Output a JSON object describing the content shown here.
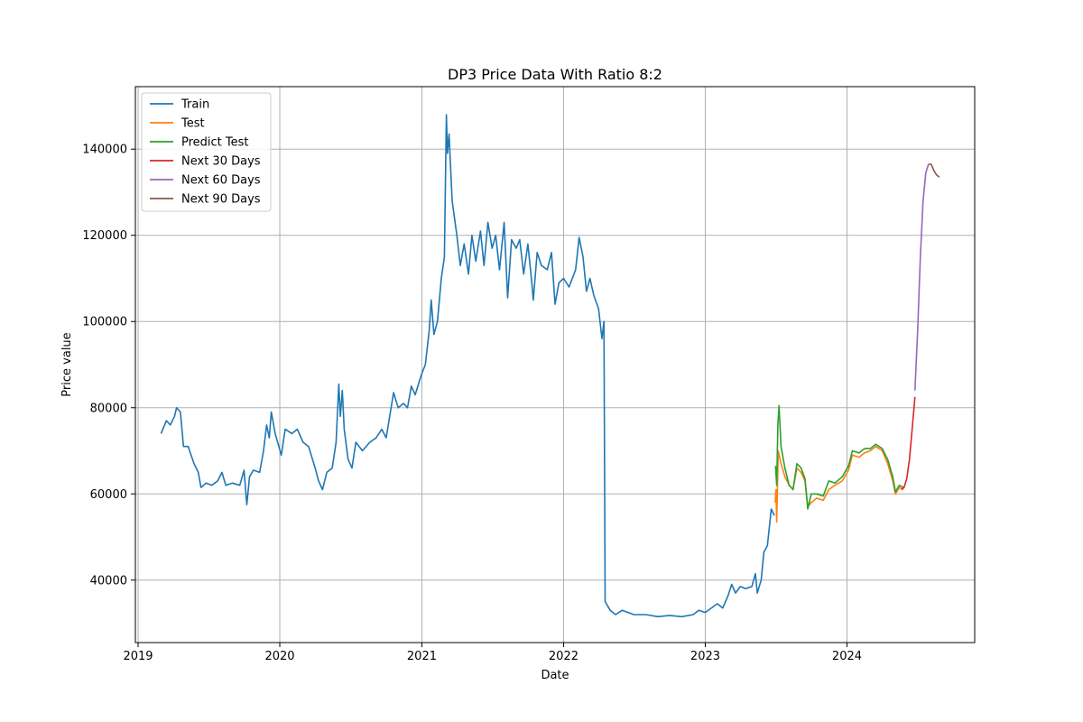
{
  "chart_data": {
    "type": "line",
    "title": "DP3 Price Data With Ratio 8:2",
    "xlabel": "Date",
    "ylabel": "Price value",
    "xlim": [
      "2018-12-25",
      "2024-11-25"
    ],
    "ylim": [
      25500,
      154500
    ],
    "x_ticks": [
      "2019",
      "2020",
      "2021",
      "2022",
      "2023",
      "2024"
    ],
    "y_ticks": [
      40000,
      60000,
      80000,
      100000,
      120000,
      140000
    ],
    "grid": true,
    "legend_position": "top-left",
    "series": [
      {
        "name": "Train",
        "color": "#1f77b4",
        "points": [
          [
            "2019-03-01",
            74000
          ],
          [
            "2019-03-15",
            77000
          ],
          [
            "2019-03-25",
            76000
          ],
          [
            "2019-04-05",
            78000
          ],
          [
            "2019-04-10",
            80000
          ],
          [
            "2019-04-20",
            79000
          ],
          [
            "2019-04-28",
            71000
          ],
          [
            "2019-05-10",
            71000
          ],
          [
            "2019-05-25",
            67000
          ],
          [
            "2019-06-05",
            65000
          ],
          [
            "2019-06-12",
            61500
          ],
          [
            "2019-06-25",
            62500
          ],
          [
            "2019-07-10",
            62000
          ],
          [
            "2019-07-25",
            63000
          ],
          [
            "2019-08-05",
            65000
          ],
          [
            "2019-08-15",
            62000
          ],
          [
            "2019-09-01",
            62500
          ],
          [
            "2019-09-20",
            62000
          ],
          [
            "2019-10-01",
            65500
          ],
          [
            "2019-10-08",
            57500
          ],
          [
            "2019-10-15",
            64000
          ],
          [
            "2019-10-25",
            65500
          ],
          [
            "2019-11-10",
            65000
          ],
          [
            "2019-11-20",
            70000
          ],
          [
            "2019-11-28",
            76000
          ],
          [
            "2019-12-05",
            73000
          ],
          [
            "2019-12-10",
            79000
          ],
          [
            "2019-12-20",
            74000
          ],
          [
            "2020-01-05",
            69000
          ],
          [
            "2020-01-15",
            75000
          ],
          [
            "2020-02-01",
            74000
          ],
          [
            "2020-02-15",
            75000
          ],
          [
            "2020-03-01",
            72000
          ],
          [
            "2020-03-15",
            71000
          ],
          [
            "2020-04-01",
            66000
          ],
          [
            "2020-04-10",
            63000
          ],
          [
            "2020-04-20",
            61000
          ],
          [
            "2020-05-01",
            65000
          ],
          [
            "2020-05-15",
            66000
          ],
          [
            "2020-05-25",
            72000
          ],
          [
            "2020-06-01",
            85500
          ],
          [
            "2020-06-05",
            78000
          ],
          [
            "2020-06-10",
            84000
          ],
          [
            "2020-06-15",
            75000
          ],
          [
            "2020-06-25",
            68000
          ],
          [
            "2020-07-05",
            66000
          ],
          [
            "2020-07-15",
            72000
          ],
          [
            "2020-08-01",
            70000
          ],
          [
            "2020-08-20",
            72000
          ],
          [
            "2020-09-05",
            73000
          ],
          [
            "2020-09-20",
            75000
          ],
          [
            "2020-10-01",
            73000
          ],
          [
            "2020-10-10",
            78000
          ],
          [
            "2020-10-20",
            83500
          ],
          [
            "2020-11-01",
            80000
          ],
          [
            "2020-11-15",
            81000
          ],
          [
            "2020-11-25",
            80000
          ],
          [
            "2020-12-05",
            85000
          ],
          [
            "2020-12-15",
            83000
          ],
          [
            "2020-12-25",
            86000
          ],
          [
            "2021-01-01",
            88000
          ],
          [
            "2021-01-10",
            90000
          ],
          [
            "2021-01-20",
            98000
          ],
          [
            "2021-01-25",
            105000
          ],
          [
            "2021-02-01",
            97000
          ],
          [
            "2021-02-10",
            100000
          ],
          [
            "2021-02-20",
            110000
          ],
          [
            "2021-02-28",
            115000
          ],
          [
            "2021-03-05",
            148000
          ],
          [
            "2021-03-08",
            139000
          ],
          [
            "2021-03-12",
            143500
          ],
          [
            "2021-03-20",
            128000
          ],
          [
            "2021-04-01",
            120000
          ],
          [
            "2021-04-10",
            113000
          ],
          [
            "2021-04-20",
            118000
          ],
          [
            "2021-05-01",
            111000
          ],
          [
            "2021-05-10",
            120000
          ],
          [
            "2021-05-20",
            114000
          ],
          [
            "2021-06-01",
            121000
          ],
          [
            "2021-06-10",
            113000
          ],
          [
            "2021-06-20",
            123000
          ],
          [
            "2021-07-01",
            117000
          ],
          [
            "2021-07-10",
            120000
          ],
          [
            "2021-07-20",
            112000
          ],
          [
            "2021-08-01",
            123000
          ],
          [
            "2021-08-10",
            105500
          ],
          [
            "2021-08-20",
            119000
          ],
          [
            "2021-09-01",
            117000
          ],
          [
            "2021-09-10",
            119000
          ],
          [
            "2021-09-20",
            111000
          ],
          [
            "2021-10-01",
            118000
          ],
          [
            "2021-10-10",
            110000
          ],
          [
            "2021-10-15",
            105000
          ],
          [
            "2021-10-25",
            116000
          ],
          [
            "2021-11-05",
            113000
          ],
          [
            "2021-11-20",
            112000
          ],
          [
            "2021-12-01",
            116000
          ],
          [
            "2021-12-10",
            104000
          ],
          [
            "2021-12-20",
            109000
          ],
          [
            "2022-01-01",
            110000
          ],
          [
            "2022-01-15",
            108000
          ],
          [
            "2022-02-01",
            112000
          ],
          [
            "2022-02-10",
            119500
          ],
          [
            "2022-02-20",
            115000
          ],
          [
            "2022-03-01",
            107000
          ],
          [
            "2022-03-10",
            110000
          ],
          [
            "2022-03-20",
            106000
          ],
          [
            "2022-04-01",
            103000
          ],
          [
            "2022-04-10",
            96000
          ],
          [
            "2022-04-15",
            100000
          ],
          [
            "2022-04-18",
            35000
          ],
          [
            "2022-05-01",
            33000
          ],
          [
            "2022-05-15",
            32000
          ],
          [
            "2022-06-01",
            33000
          ],
          [
            "2022-07-01",
            32000
          ],
          [
            "2022-08-01",
            32000
          ],
          [
            "2022-09-01",
            31500
          ],
          [
            "2022-10-01",
            31800
          ],
          [
            "2022-11-01",
            31500
          ],
          [
            "2022-12-01",
            32000
          ],
          [
            "2022-12-15",
            33000
          ],
          [
            "2023-01-01",
            32500
          ],
          [
            "2023-02-01",
            34500
          ],
          [
            "2023-02-15",
            33500
          ],
          [
            "2023-03-01",
            36500
          ],
          [
            "2023-03-10",
            39000
          ],
          [
            "2023-03-20",
            37000
          ],
          [
            "2023-04-01",
            38500
          ],
          [
            "2023-04-15",
            38000
          ],
          [
            "2023-05-01",
            38500
          ],
          [
            "2023-05-10",
            41500
          ],
          [
            "2023-05-15",
            37000
          ],
          [
            "2023-05-25",
            40000
          ],
          [
            "2023-06-01",
            46500
          ],
          [
            "2023-06-10",
            48000
          ],
          [
            "2023-06-20",
            56500
          ],
          [
            "2023-06-28",
            55000
          ]
        ]
      },
      {
        "name": "Test",
        "color": "#ff7f0e",
        "points": [
          [
            "2023-06-30",
            58000
          ],
          [
            "2023-07-02",
            61000
          ],
          [
            "2023-07-04",
            53500
          ],
          [
            "2023-07-08",
            70000
          ],
          [
            "2023-07-15",
            67000
          ],
          [
            "2023-07-25",
            64000
          ],
          [
            "2023-08-05",
            62000
          ],
          [
            "2023-08-15",
            61000
          ],
          [
            "2023-08-25",
            66000
          ],
          [
            "2023-09-05",
            65000
          ],
          [
            "2023-09-15",
            63000
          ],
          [
            "2023-09-22",
            57000
          ],
          [
            "2023-10-01",
            58000
          ],
          [
            "2023-10-15",
            59000
          ],
          [
            "2023-11-01",
            58500
          ],
          [
            "2023-11-15",
            61000
          ],
          [
            "2023-12-01",
            62000
          ],
          [
            "2023-12-20",
            63000
          ],
          [
            "2024-01-05",
            65500
          ],
          [
            "2024-01-15",
            69000
          ],
          [
            "2024-02-01",
            68500
          ],
          [
            "2024-02-15",
            69500
          ],
          [
            "2024-03-01",
            70000
          ],
          [
            "2024-03-15",
            71000
          ],
          [
            "2024-04-01",
            70000
          ],
          [
            "2024-04-15",
            67000
          ],
          [
            "2024-04-28",
            63000
          ],
          [
            "2024-05-05",
            60000
          ],
          [
            "2024-05-15",
            61500
          ],
          [
            "2024-05-25",
            61000
          ]
        ]
      },
      {
        "name": "Predict Test",
        "color": "#2ca02c",
        "points": [
          [
            "2023-07-01",
            66500
          ],
          [
            "2023-07-04",
            62000
          ],
          [
            "2023-07-07",
            76000
          ],
          [
            "2023-07-10",
            80500
          ],
          [
            "2023-07-15",
            71000
          ],
          [
            "2023-07-25",
            66000
          ],
          [
            "2023-08-05",
            62000
          ],
          [
            "2023-08-15",
            61000
          ],
          [
            "2023-08-25",
            67000
          ],
          [
            "2023-09-05",
            66000
          ],
          [
            "2023-09-15",
            63500
          ],
          [
            "2023-09-22",
            56500
          ],
          [
            "2023-10-01",
            60000
          ],
          [
            "2023-10-15",
            60000
          ],
          [
            "2023-11-01",
            59500
          ],
          [
            "2023-11-15",
            63000
          ],
          [
            "2023-12-01",
            62500
          ],
          [
            "2023-12-20",
            64000
          ],
          [
            "2024-01-05",
            66500
          ],
          [
            "2024-01-15",
            70000
          ],
          [
            "2024-02-01",
            69500
          ],
          [
            "2024-02-15",
            70500
          ],
          [
            "2024-03-01",
            70500
          ],
          [
            "2024-03-15",
            71500
          ],
          [
            "2024-04-01",
            70500
          ],
          [
            "2024-04-15",
            68000
          ],
          [
            "2024-04-28",
            64000
          ],
          [
            "2024-05-05",
            60500
          ],
          [
            "2024-05-15",
            62000
          ],
          [
            "2024-05-25",
            61500
          ]
        ]
      },
      {
        "name": "Next 30 Days",
        "color": "#d62728",
        "points": [
          [
            "2024-05-20",
            61000
          ],
          [
            "2024-05-27",
            61500
          ],
          [
            "2024-06-03",
            63500
          ],
          [
            "2024-06-10",
            68000
          ],
          [
            "2024-06-17",
            75000
          ],
          [
            "2024-06-24",
            82500
          ]
        ]
      },
      {
        "name": "Next 60 Days",
        "color": "#9467bd",
        "points": [
          [
            "2024-06-24",
            84000
          ],
          [
            "2024-07-01",
            98000
          ],
          [
            "2024-07-08",
            115000
          ],
          [
            "2024-07-15",
            128000
          ],
          [
            "2024-07-22",
            134500
          ],
          [
            "2024-07-29",
            136500
          ]
        ]
      },
      {
        "name": "Next 90 Days",
        "color": "#8c564b",
        "points": [
          [
            "2024-07-29",
            136500
          ],
          [
            "2024-08-05",
            136500
          ],
          [
            "2024-08-12",
            135000
          ],
          [
            "2024-08-19",
            134000
          ],
          [
            "2024-08-26",
            133500
          ]
        ]
      }
    ]
  }
}
